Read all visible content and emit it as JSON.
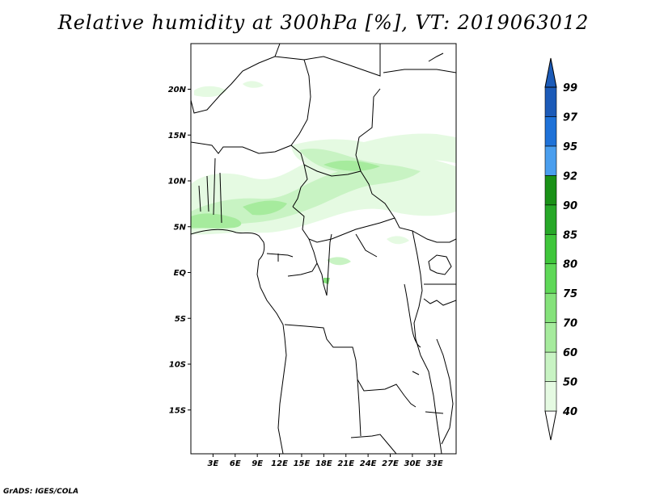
{
  "title": "Relative humidity at 300hPa [%], VT: 2019063012",
  "credit": "GrADS: IGES/COLA",
  "map": {
    "lat_ticks": [
      {
        "label": "20N",
        "lat": 20
      },
      {
        "label": "15N",
        "lat": 15
      },
      {
        "label": "10N",
        "lat": 10
      },
      {
        "label": "5N",
        "lat": 5
      },
      {
        "label": "EQ",
        "lat": 0
      },
      {
        "label": "5S",
        "lat": -5
      },
      {
        "label": "10S",
        "lat": -10
      },
      {
        "label": "15S",
        "lat": -15
      }
    ],
    "lon_ticks": [
      {
        "label": "3E",
        "lon": 3
      },
      {
        "label": "6E",
        "lon": 6
      },
      {
        "label": "9E",
        "lon": 9
      },
      {
        "label": "12E",
        "lon": 12
      },
      {
        "label": "15E",
        "lon": 15
      },
      {
        "label": "18E",
        "lon": 18
      },
      {
        "label": "21E",
        "lon": 21
      },
      {
        "label": "24E",
        "lon": 24
      },
      {
        "label": "27E",
        "lon": 27
      },
      {
        "label": "30E",
        "lon": 30
      },
      {
        "label": "33E",
        "lon": 33
      }
    ]
  },
  "colorbar": {
    "levels": [
      {
        "label": "40",
        "color": "#ffffff"
      },
      {
        "label": "50",
        "color": "#e5fae2"
      },
      {
        "label": "60",
        "color": "#c8f3c3"
      },
      {
        "label": "70",
        "color": "#a6eb9d"
      },
      {
        "label": "75",
        "color": "#85e27b"
      },
      {
        "label": "80",
        "color": "#5fd858"
      },
      {
        "label": "85",
        "color": "#3fc63b"
      },
      {
        "label": "90",
        "color": "#27a828"
      },
      {
        "label": "92",
        "color": "#1a9117"
      },
      {
        "label": "95",
        "color": "#4a9eee"
      },
      {
        "label": "97",
        "color": "#1f72d8"
      },
      {
        "label": "99",
        "color": "#1c5bb8"
      }
    ],
    "top_color": "#1c5bb8",
    "bottom_color": "#ffffff"
  }
}
